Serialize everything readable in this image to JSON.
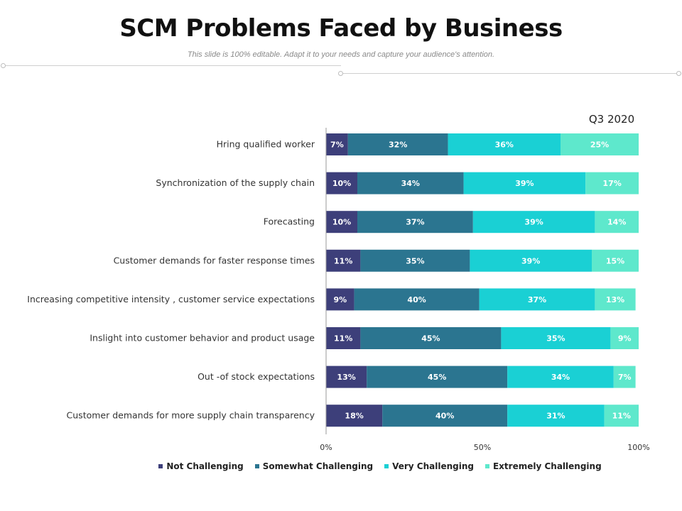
{
  "page": {
    "title": "SCM Problems Faced by Business",
    "subtitle": "This slide is 100% editable. Adapt it to your needs and capture your audience's attention."
  },
  "chart_data": {
    "type": "bar",
    "orientation": "horizontal",
    "stacked": true,
    "period_label": "Q3 2020",
    "categories": [
      "Hring qualified worker",
      "Synchronization of the supply chain",
      "Forecasting",
      "Customer demands for faster response times",
      "Increasing competitive intensity , customer service expectations",
      "Inslight into customer behavior and product usage",
      "Out -of stock expectations",
      "Customer demands for more supply chain transparency"
    ],
    "series": [
      {
        "name": "Not Challenging",
        "color": "#3d3f7a",
        "values": [
          7,
          10,
          10,
          11,
          9,
          11,
          13,
          18
        ]
      },
      {
        "name": "Somewhat Challenging",
        "color": "#2b7590",
        "values": [
          32,
          34,
          37,
          35,
          40,
          45,
          45,
          40
        ]
      },
      {
        "name": "Very  Challenging",
        "color": "#1ad0d4",
        "values": [
          36,
          39,
          39,
          39,
          37,
          35,
          34,
          31
        ]
      },
      {
        "name": "Extremely Challenging",
        "color": "#5ee8cc",
        "values": [
          25,
          17,
          14,
          15,
          13,
          9,
          7,
          11
        ]
      }
    ],
    "value_suffix": "%",
    "xlim": [
      0,
      100
    ],
    "xticks": [
      0,
      50,
      100
    ],
    "xtick_labels": [
      "0%",
      "50%",
      "100%"
    ],
    "legend_position": "bottom"
  }
}
